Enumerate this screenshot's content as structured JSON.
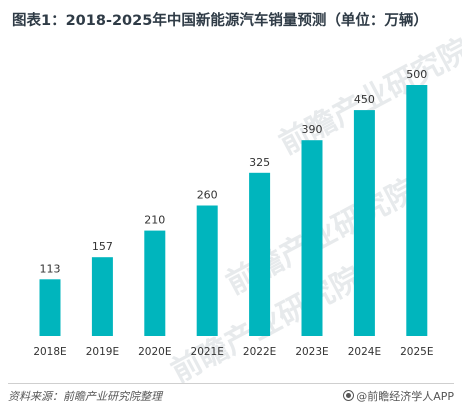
{
  "title": "图表1：2018-2025年中国新能源汽车销量预测（单位：万辆）",
  "source": "资料来源：前瞻产业研究院整理",
  "brand": "@前瞻经济学人APP",
  "watermark": "前瞻产业研究院",
  "chart_data": {
    "type": "bar",
    "title": "图表1：2018-2025年中国新能源汽车销量预测（单位：万辆）",
    "categories": [
      "2018E",
      "2019E",
      "2020E",
      "2021E",
      "2022E",
      "2023E",
      "2024E",
      "2025E"
    ],
    "values": [
      113,
      157,
      210,
      260,
      325,
      390,
      450,
      500
    ],
    "ylim": [
      0,
      500
    ],
    "grid": false,
    "bar_color": "#00b5bd"
  }
}
